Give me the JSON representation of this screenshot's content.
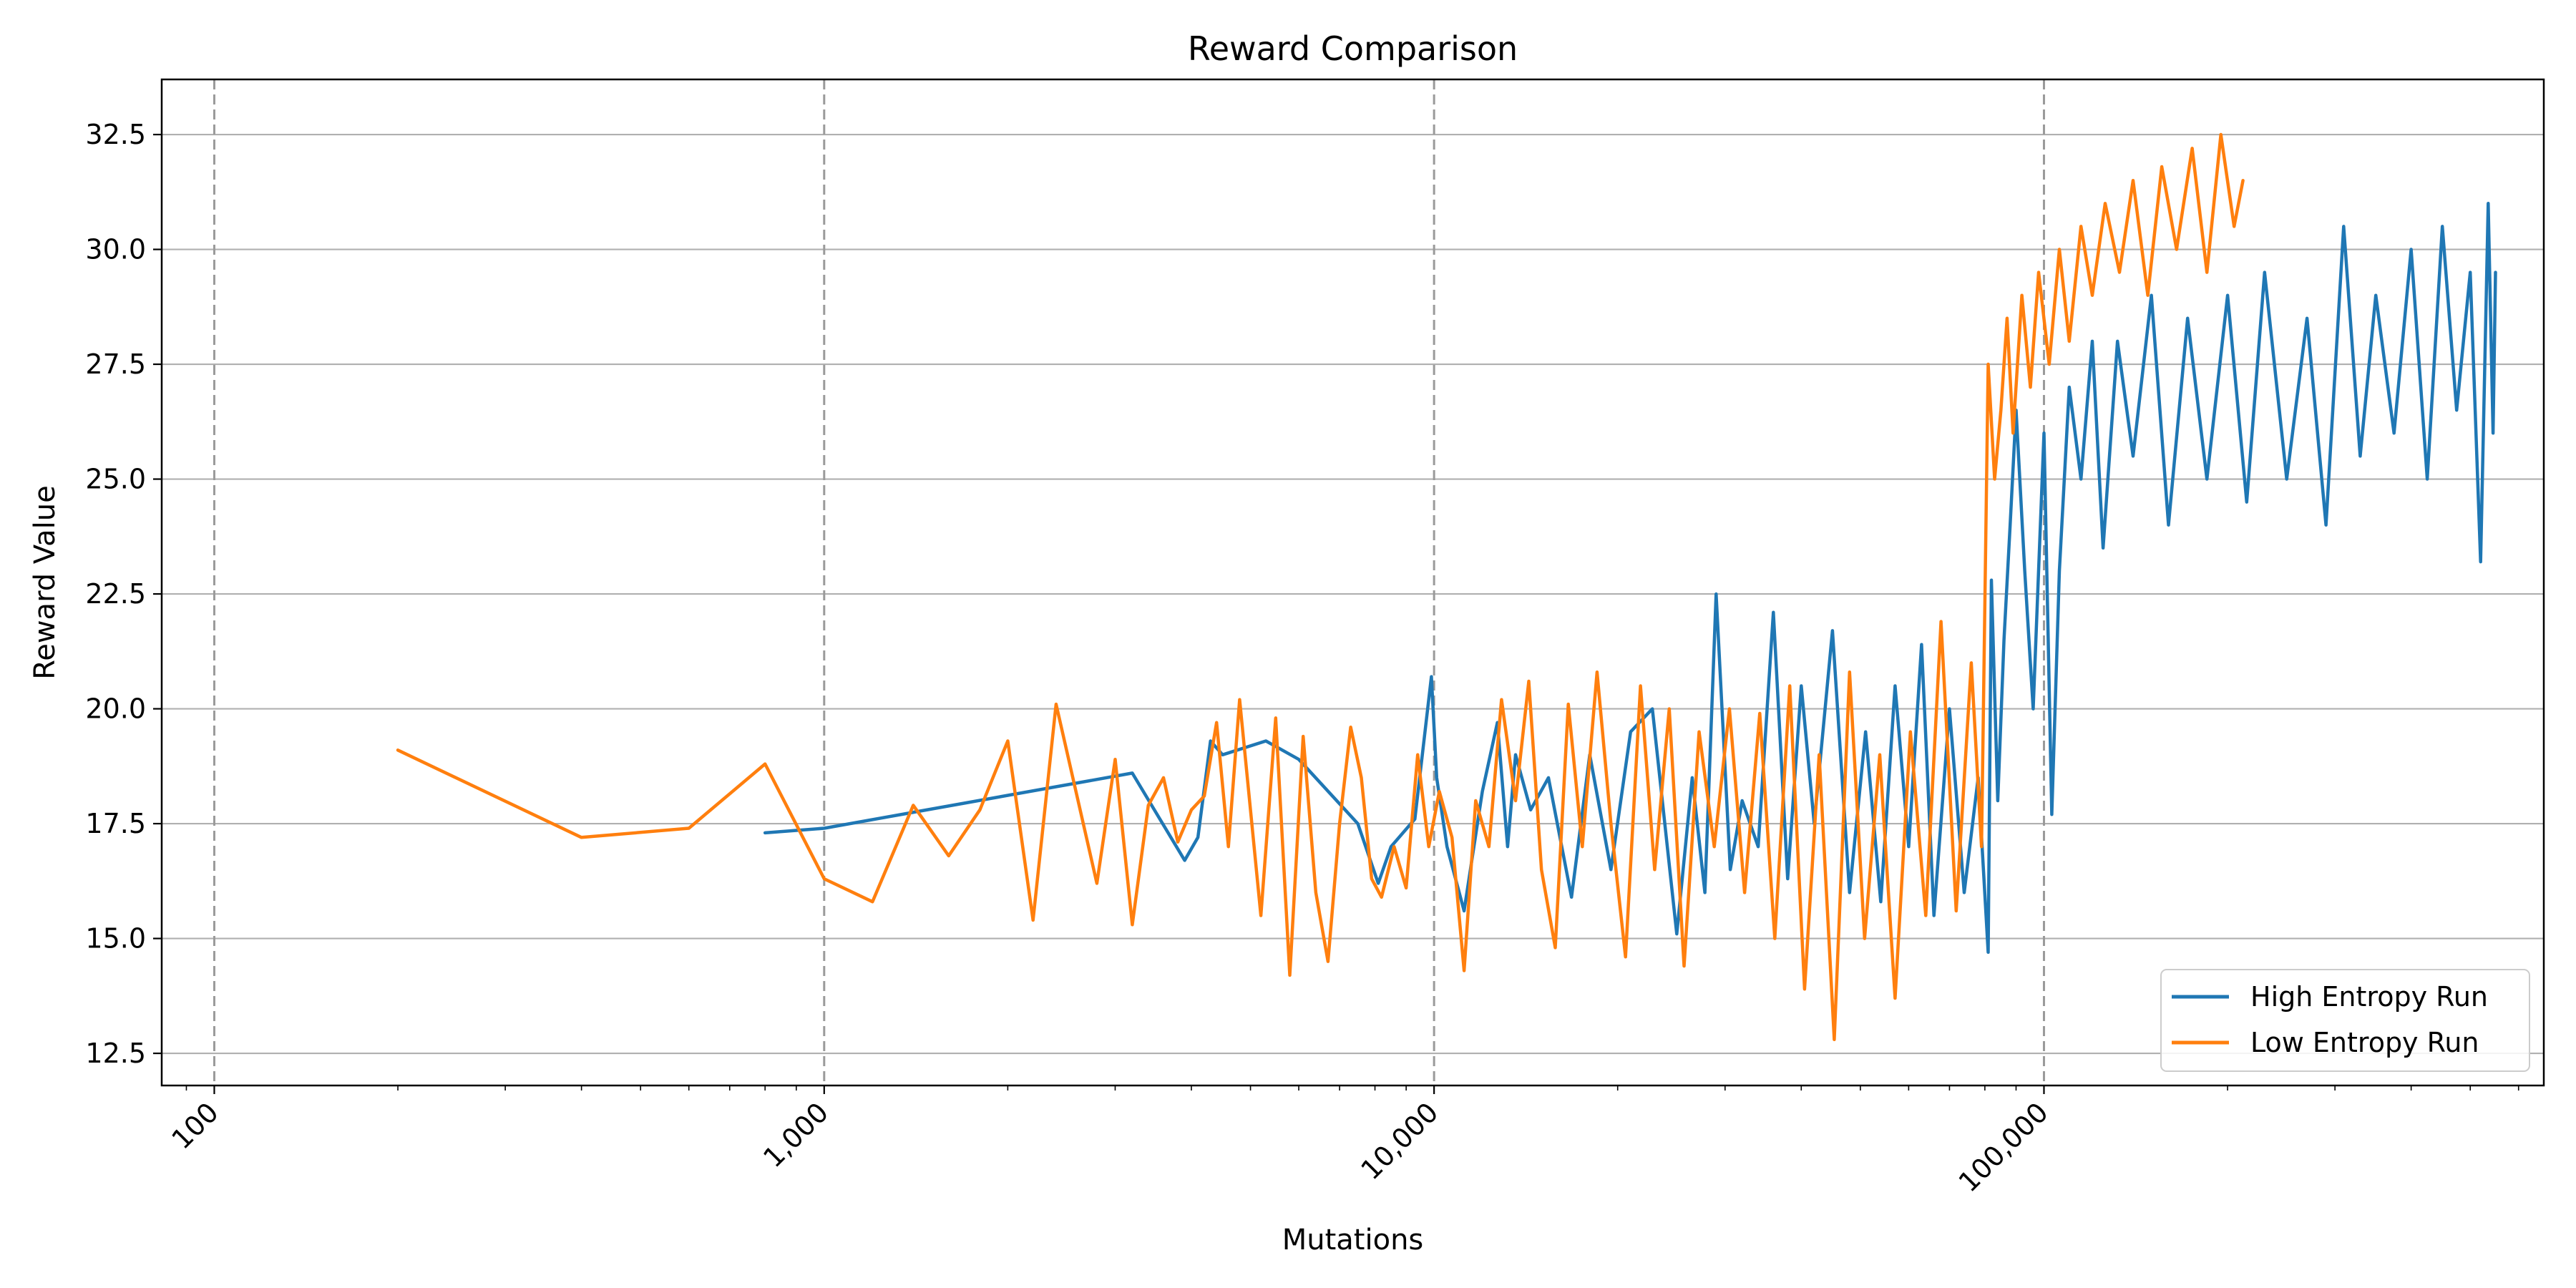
{
  "chart_data": {
    "type": "line",
    "title": "Reward Comparison",
    "xlabel": "Mutations",
    "ylabel": "Reward Value",
    "x_scale": "log",
    "xlim": [
      82,
      660000
    ],
    "ylim": [
      11.8,
      33.7
    ],
    "x_ticks": [
      100,
      1000,
      10000,
      100000
    ],
    "x_tick_labels": [
      "100",
      "1,000",
      "10,000",
      "100,000"
    ],
    "y_ticks": [
      12.5,
      15.0,
      17.5,
      20.0,
      22.5,
      25.0,
      27.5,
      30.0,
      32.5
    ],
    "y_tick_labels": [
      "12.5",
      "15.0",
      "17.5",
      "20.0",
      "22.5",
      "25.0",
      "27.5",
      "30.0",
      "32.5"
    ],
    "grid": {
      "horizontal": true,
      "vertical": "dashed at major x ticks"
    },
    "legend_position": "bottom-right",
    "colors": {
      "high": "#1f77b4",
      "low": "#ff7f0e"
    },
    "series": [
      {
        "name": "High Entropy Run",
        "color": "#1f77b4",
        "x": [
          800,
          1000,
          3200,
          3900,
          4100,
          4300,
          4500,
          5300,
          6000,
          7500,
          8100,
          8500,
          9300,
          9900,
          10100,
          10500,
          11200,
          12000,
          12700,
          13200,
          13600,
          14400,
          15400,
          16800,
          18000,
          19500,
          21000,
          22800,
          25000,
          26500,
          27800,
          29000,
          30600,
          32000,
          34000,
          36000,
          38000,
          40000,
          42000,
          45000,
          48000,
          51000,
          54000,
          57000,
          60000,
          63000,
          66000,
          70000,
          74000,
          78000,
          81000,
          82000,
          84000,
          86000,
          88000,
          90000,
          93000,
          96000,
          100000,
          103000,
          106000,
          110000,
          115000,
          120000,
          125000,
          132000,
          140000,
          150000,
          160000,
          172000,
          185000,
          200000,
          215000,
          230000,
          250000,
          270000,
          290000,
          310000,
          330000,
          350000,
          375000,
          400000,
          425000,
          450000,
          475000,
          500000,
          520000,
          535000,
          545000,
          550000
        ],
        "y": [
          17.3,
          17.4,
          18.6,
          16.7,
          17.2,
          19.3,
          19.0,
          19.3,
          18.9,
          17.5,
          16.2,
          17.0,
          17.6,
          20.7,
          18.5,
          17.0,
          15.6,
          18.2,
          19.7,
          17.0,
          19.0,
          17.8,
          18.5,
          15.9,
          19.0,
          16.5,
          19.5,
          20.0,
          15.1,
          18.5,
          16.0,
          22.5,
          16.5,
          18.0,
          17.0,
          22.1,
          16.3,
          20.5,
          17.5,
          21.7,
          16.0,
          19.5,
          15.8,
          20.5,
          17.0,
          21.4,
          15.5,
          20.0,
          16.0,
          18.5,
          14.7,
          22.8,
          18.0,
          21.5,
          24.0,
          26.5,
          23.0,
          20.0,
          26.0,
          17.7,
          23.0,
          27.0,
          25.0,
          28.0,
          23.5,
          28.0,
          25.5,
          29.0,
          24.0,
          28.5,
          25.0,
          29.0,
          24.5,
          29.5,
          25.0,
          28.5,
          24.0,
          30.5,
          25.5,
          29.0,
          26.0,
          30.0,
          25.0,
          30.5,
          26.5,
          29.5,
          23.2,
          31.0,
          26.0,
          29.5
        ]
      },
      {
        "name": "Low Entropy Run",
        "color": "#ff7f0e",
        "x": [
          200,
          400,
          600,
          800,
          1000,
          1200,
          1400,
          1600,
          1800,
          2000,
          2200,
          2400,
          2800,
          3000,
          3200,
          3400,
          3600,
          3800,
          4000,
          4200,
          4400,
          4600,
          4800,
          5200,
          5500,
          5800,
          6100,
          6400,
          6700,
          7000,
          7300,
          7600,
          7900,
          8200,
          8600,
          9000,
          9400,
          9800,
          10200,
          10700,
          11200,
          11700,
          12300,
          12900,
          13600,
          14300,
          15000,
          15800,
          16600,
          17500,
          18500,
          19500,
          20600,
          21800,
          23000,
          24300,
          25700,
          27200,
          28800,
          30500,
          32300,
          34200,
          36200,
          38300,
          40500,
          42800,
          45300,
          48000,
          50800,
          53800,
          57000,
          60400,
          64000,
          67800,
          71800,
          76000,
          79000,
          81000,
          83000,
          85000,
          87000,
          89000,
          92000,
          95000,
          98000,
          102000,
          106000,
          110000,
          115000,
          120000,
          126000,
          133000,
          140000,
          148000,
          156000,
          165000,
          175000,
          185000,
          195000,
          205000,
          212000
        ],
        "y": [
          19.1,
          17.2,
          17.4,
          18.8,
          16.3,
          15.8,
          17.9,
          16.8,
          17.8,
          19.3,
          15.4,
          20.1,
          16.2,
          18.9,
          15.3,
          17.9,
          18.5,
          17.1,
          17.8,
          18.1,
          19.7,
          17.0,
          20.2,
          15.5,
          19.8,
          14.2,
          19.4,
          16.0,
          14.5,
          17.5,
          19.6,
          18.5,
          16.3,
          15.9,
          17.0,
          16.1,
          19.0,
          17.0,
          18.2,
          17.2,
          14.3,
          18.0,
          17.0,
          20.2,
          18.0,
          20.6,
          16.5,
          14.8,
          20.1,
          17.0,
          20.8,
          17.5,
          14.6,
          20.5,
          16.5,
          20.0,
          14.4,
          19.5,
          17.0,
          20.0,
          16.0,
          19.9,
          15.0,
          20.5,
          13.9,
          19.0,
          12.8,
          20.8,
          15.0,
          19.0,
          13.7,
          19.5,
          15.5,
          21.9,
          15.6,
          21.0,
          17.0,
          27.5,
          25.0,
          26.5,
          28.5,
          26.0,
          29.0,
          27.0,
          29.5,
          27.5,
          30.0,
          28.0,
          30.5,
          29.0,
          31.0,
          29.5,
          31.5,
          29.0,
          31.8,
          30.0,
          32.2,
          29.5,
          32.5,
          30.5,
          31.5
        ]
      }
    ]
  }
}
